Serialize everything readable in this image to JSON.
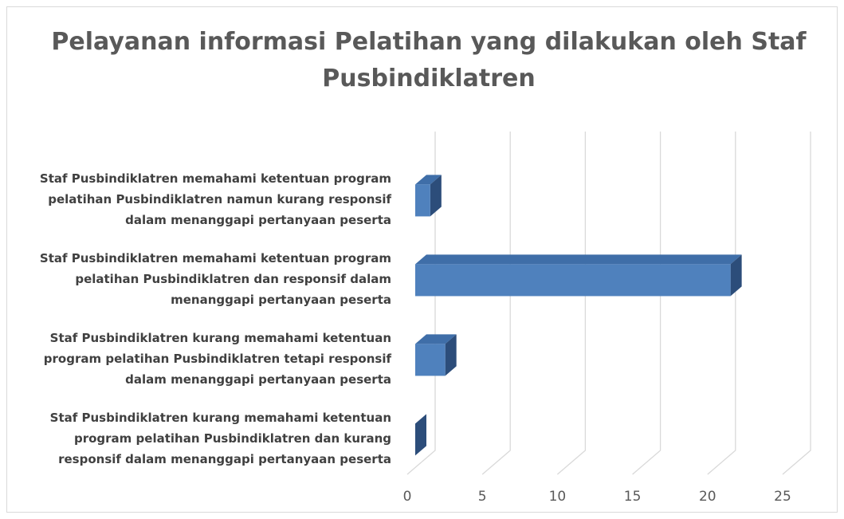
{
  "chart_data": {
    "type": "bar3d_horizontal",
    "title": "Pelayanan informasi Pelatihan yang dilakukan oleh Staf Pusbindiklatren",
    "categories": [
      "Staf Pusbindiklatren memahami ketentuan program pelatihan Pusbindiklatren namun kurang responsif dalam menanggapi pertanyaan peserta",
      "Staf Pusbindiklatren memahami ketentuan program pelatihan Pusbindiklatren dan responsif dalam menanggapi pertanyaan peserta",
      "Staf Pusbindiklatren kurang memahami ketentuan program pelatihan Pusbindiklatren tetapi responsif dalam menanggapi pertanyaan peserta",
      "Staf Pusbindiklatren kurang memahami ketentuan program pelatihan Pusbindiklatren dan kurang responsif dalam menanggapi pertanyaan peserta"
    ],
    "values": [
      1,
      21,
      2,
      0
    ],
    "color": "#4f81bd",
    "xlim": [
      0,
      25
    ],
    "xticks": [
      0,
      5,
      10,
      15,
      20,
      25
    ],
    "grid": true
  }
}
